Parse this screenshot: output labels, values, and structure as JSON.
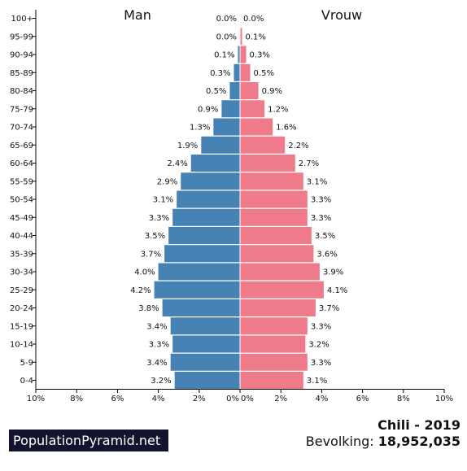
{
  "chart_data": {
    "type": "bar",
    "orientation": "horizontal-population-pyramid",
    "categories": [
      "0-4",
      "5-9",
      "10-14",
      "15-19",
      "20-24",
      "25-29",
      "30-34",
      "35-39",
      "40-44",
      "45-49",
      "50-54",
      "55-59",
      "60-64",
      "65-69",
      "70-74",
      "75-79",
      "80-84",
      "85-89",
      "90-94",
      "95-99",
      "100+"
    ],
    "series": [
      {
        "name": "Man",
        "color": "#4682b4",
        "values": [
          3.2,
          3.4,
          3.3,
          3.4,
          3.8,
          4.2,
          4.0,
          3.7,
          3.5,
          3.3,
          3.1,
          2.9,
          2.4,
          1.9,
          1.3,
          0.9,
          0.5,
          0.3,
          0.1,
          0.0,
          0.0
        ],
        "labels": [
          "3.2%",
          "3.4%",
          "3.3%",
          "3.4%",
          "3.8%",
          "4.2%",
          "4.0%",
          "3.7%",
          "3.5%",
          "3.3%",
          "3.1%",
          "2.9%",
          "2.4%",
          "1.9%",
          "1.3%",
          "0.9%",
          "0.5%",
          "0.3%",
          "0.1%",
          "0.0%",
          "0.0%"
        ]
      },
      {
        "name": "Vrouw",
        "color": "#ef7a89",
        "values": [
          3.1,
          3.3,
          3.2,
          3.3,
          3.7,
          4.1,
          3.9,
          3.6,
          3.5,
          3.3,
          3.3,
          3.1,
          2.7,
          2.2,
          1.6,
          1.2,
          0.9,
          0.5,
          0.3,
          0.1,
          0.0
        ],
        "labels": [
          "3.1%",
          "3.3%",
          "3.2%",
          "3.3%",
          "3.7%",
          "4.1%",
          "3.9%",
          "3.6%",
          "3.5%",
          "3.3%",
          "3.3%",
          "3.1%",
          "2.7%",
          "2.2%",
          "1.6%",
          "1.2%",
          "0.9%",
          "0.5%",
          "0.3%",
          "0.1%",
          "0.0%"
        ]
      }
    ],
    "xlim": [
      -10,
      10
    ],
    "xticks": [
      "10%",
      "8%",
      "6%",
      "4%",
      "2%",
      "0%",
      "0%",
      "2%",
      "4%",
      "6%",
      "8%",
      "10%"
    ],
    "xtick_values": [
      -10,
      -8,
      -6,
      -4,
      -2,
      0,
      0,
      2,
      4,
      6,
      8,
      10
    ],
    "grid": false,
    "legend": "none"
  },
  "brand": "PopulationPyramid.net",
  "country": "Chili - 2019",
  "population_label": "Bevolking:",
  "population_value": "18,952,035"
}
